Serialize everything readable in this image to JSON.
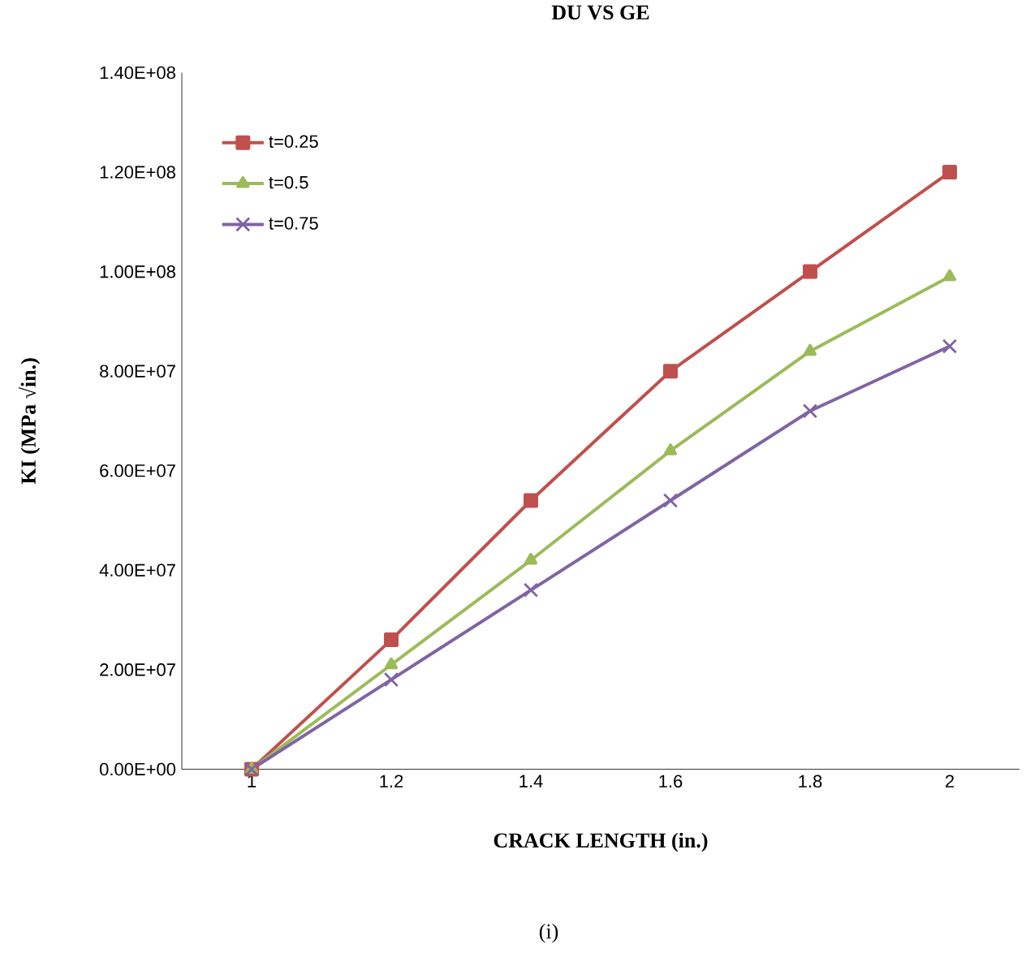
{
  "chart_data": {
    "type": "line",
    "title": "DU VS GE",
    "xlabel": "CRACK LENGTH (in.)",
    "ylabel": "KI (MPa √in.)",
    "categories": [
      "1",
      "1.2",
      "1.4",
      "1.6",
      "1.8",
      "2"
    ],
    "series": [
      {
        "name": "t=0.25",
        "color": "#c0504d",
        "marker": "square",
        "values": [
          0,
          26000000,
          54000000,
          80000000,
          100000000,
          120000000
        ]
      },
      {
        "name": "t=0.5",
        "color": "#9bbb59",
        "marker": "triangle",
        "values": [
          0,
          21000000,
          42000000,
          64000000,
          84000000,
          99000000
        ]
      },
      {
        "name": "t=0.75",
        "color": "#8064a2",
        "marker": "cross",
        "values": [
          0,
          18000000,
          36000000,
          54000000,
          72000000,
          85000000
        ]
      }
    ],
    "ylim": [
      0,
      140000000
    ],
    "yticks": [
      {
        "value": 0,
        "label": "0.00E+00"
      },
      {
        "value": 20000000,
        "label": "2.00E+07"
      },
      {
        "value": 40000000,
        "label": "4.00E+07"
      },
      {
        "value": 60000000,
        "label": "6.00E+07"
      },
      {
        "value": 80000000,
        "label": "8.00E+07"
      },
      {
        "value": 100000000,
        "label": "1.00E+08"
      },
      {
        "value": 120000000,
        "label": "1.20E+08"
      },
      {
        "value": 140000000,
        "label": "1.40E+08"
      }
    ],
    "grid": false,
    "legend": "top left",
    "annotations": [
      "(i)"
    ]
  }
}
